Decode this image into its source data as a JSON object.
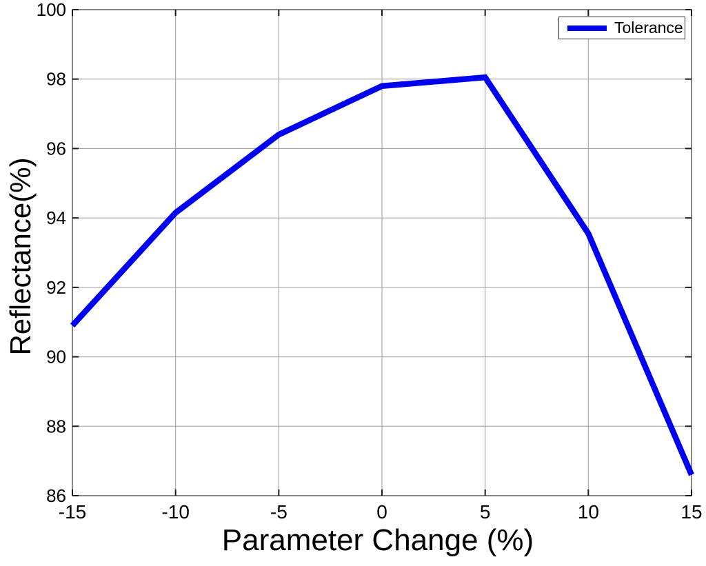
{
  "figure": {
    "background": "#ffffff"
  },
  "chart_data": {
    "type": "line",
    "title": "",
    "xlabel": "Parameter Change (%)",
    "ylabel": "Reflectance(%)",
    "x": [
      -15,
      -10,
      -5,
      0,
      5,
      10,
      15
    ],
    "series": [
      {
        "name": "Tolerance",
        "color": "#0000f0",
        "line_width": 8.5,
        "values": [
          90.9,
          94.15,
          96.4,
          97.8,
          98.05,
          93.55,
          86.6
        ]
      }
    ],
    "xlim": [
      -15,
      15
    ],
    "ylim": [
      86,
      100
    ],
    "x_ticks": [
      -15,
      -10,
      -5,
      0,
      5,
      10,
      15
    ],
    "y_ticks": [
      86,
      88,
      90,
      92,
      94,
      96,
      98,
      100
    ],
    "grid": true,
    "legend": {
      "label": "Tolerance",
      "position": "top-right"
    }
  },
  "colors": {
    "grid": "#9a9a9a",
    "axis_box": "#5e5e5e",
    "tick": "#1a1a1a",
    "text": "#000000",
    "background": "#ffffff"
  }
}
